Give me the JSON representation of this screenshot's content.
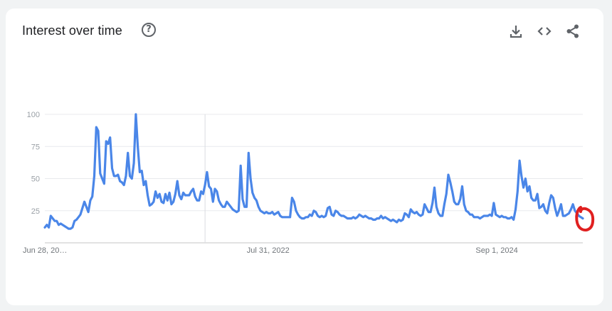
{
  "header": {
    "title": "Interest over time",
    "help_icon": "help-circle-icon",
    "help_glyph": "?",
    "actions": [
      {
        "icon": "download-icon"
      },
      {
        "icon": "embed-code-icon"
      },
      {
        "icon": "share-icon"
      }
    ]
  },
  "colors": {
    "line": "#4a86e8",
    "grid": "#e8eaed",
    "axis": "#c6c6c6",
    "annotation": "#e02020"
  },
  "chart_data": {
    "type": "line",
    "title": "Interest over time",
    "ylim": [
      0,
      100
    ],
    "y_ticks": [
      25,
      50,
      75,
      100
    ],
    "y_tick_labels": [
      "25",
      "50",
      "75",
      "100"
    ],
    "x_tick_labels": [
      "Jun 28, 20…",
      "Jul 31, 2022",
      "Sep 1, 2024"
    ],
    "grid": true,
    "series": [
      {
        "values": [
          12,
          14,
          12,
          21,
          19,
          17,
          17,
          14,
          15,
          14,
          13,
          12,
          11,
          11,
          12,
          17,
          18,
          20,
          22,
          27,
          32,
          28,
          24,
          33,
          36,
          52,
          90,
          87,
          54,
          50,
          46,
          79,
          77,
          82,
          58,
          52,
          52,
          53,
          48,
          47,
          45,
          52,
          70,
          52,
          50,
          62,
          100,
          75,
          55,
          56,
          45,
          48,
          37,
          29,
          30,
          32,
          40,
          35,
          38,
          32,
          31,
          38,
          33,
          39,
          30,
          32,
          38,
          48,
          37,
          34,
          39,
          37,
          37,
          37,
          40,
          42,
          36,
          33,
          33,
          40,
          38,
          45,
          55,
          44,
          42,
          32,
          42,
          40,
          33,
          30,
          28,
          28,
          32,
          30,
          28,
          26,
          25,
          24,
          25,
          60,
          34,
          28,
          28,
          70,
          50,
          39,
          35,
          33,
          28,
          25,
          24,
          23,
          24,
          23,
          23,
          24,
          22,
          23,
          24,
          21,
          20,
          20,
          20,
          20,
          20,
          35,
          32,
          25,
          22,
          20,
          19,
          19,
          20,
          20,
          22,
          21,
          25,
          24,
          21,
          20,
          21,
          20,
          21,
          27,
          28,
          22,
          21,
          25,
          24,
          22,
          21,
          21,
          20,
          19,
          19,
          19,
          20,
          19,
          20,
          22,
          21,
          20,
          21,
          20,
          19,
          19,
          18,
          18,
          19,
          19,
          21,
          19,
          20,
          19,
          18,
          17,
          18,
          17,
          16,
          18,
          17,
          18,
          23,
          22,
          20,
          26,
          24,
          23,
          24,
          22,
          21,
          22,
          30,
          27,
          24,
          24,
          31,
          43,
          28,
          23,
          21,
          21,
          30,
          38,
          53,
          47,
          40,
          32,
          30,
          30,
          34,
          44,
          30,
          25,
          24,
          22,
          22,
          20,
          20,
          20,
          19,
          20,
          21,
          21,
          21,
          22,
          21,
          31,
          22,
          21,
          20,
          21,
          20,
          20,
          19,
          19,
          20,
          18,
          26,
          40,
          64,
          52,
          43,
          50,
          40,
          44,
          35,
          33,
          33,
          38,
          27,
          28,
          30,
          25,
          23,
          31,
          37,
          35,
          27,
          21,
          25,
          30,
          21,
          21,
          22,
          23,
          26,
          30,
          25,
          23,
          21,
          20,
          19
        ]
      }
    ],
    "annotation": "red-circle-marker"
  }
}
